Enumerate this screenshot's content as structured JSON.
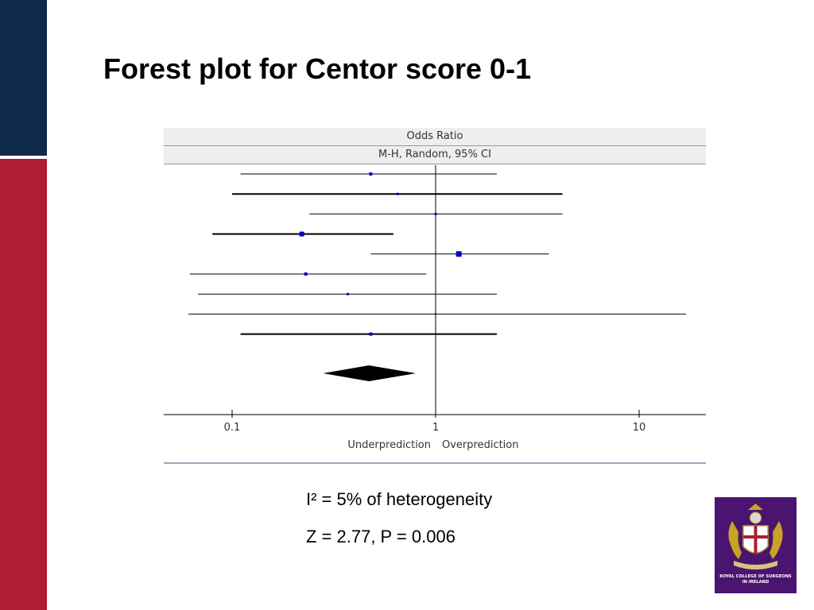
{
  "slide": {
    "title": "Forest plot for Centor score 0-1",
    "stats": {
      "i2": "I² = 5% of heterogeneity",
      "z": "Z = 2.77, P = 0.006"
    },
    "colors": {
      "navy": "#0e2a4a",
      "red": "#b01c33",
      "logo_bg": "#4b1470"
    },
    "logo": {
      "name": "crest-icon",
      "text": "ROYAL COLLEGE OF SURGEONS IN IRELAND"
    }
  },
  "chart_data": {
    "type": "forest",
    "header_1": "Odds Ratio",
    "header_2": "M-H, Random, 95% CI",
    "x_scale": "log",
    "xlim": [
      0.05,
      20
    ],
    "ticks": [
      0.1,
      1,
      10
    ],
    "tick_labels": [
      "0.1",
      "1",
      "10"
    ],
    "reference_line": 1,
    "direction_left": "Underprediction",
    "direction_right": "Overprediction",
    "studies": [
      {
        "or": 0.48,
        "lo": 0.11,
        "hi": 2.0
      },
      {
        "or": 0.65,
        "lo": 0.1,
        "hi": 4.2
      },
      {
        "or": 1.0,
        "lo": 0.24,
        "hi": 4.2
      },
      {
        "or": 0.22,
        "lo": 0.08,
        "hi": 0.62
      },
      {
        "or": 1.3,
        "lo": 0.48,
        "hi": 3.6
      },
      {
        "or": 0.23,
        "lo": 0.062,
        "hi": 0.9
      },
      {
        "or": 0.37,
        "lo": 0.068,
        "hi": 2.0
      },
      {
        "or": 1.0,
        "lo": 0.061,
        "hi": 17
      },
      {
        "or": 0.48,
        "lo": 0.11,
        "hi": 2.0
      }
    ],
    "pooled": {
      "or": 0.47,
      "lo": 0.28,
      "hi": 0.8
    }
  }
}
